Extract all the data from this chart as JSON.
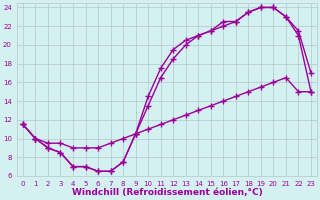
{
  "line1_x": [
    0,
    1,
    2,
    3,
    4,
    5,
    6,
    7,
    8,
    9,
    10,
    11,
    12,
    13,
    14,
    15,
    16,
    17,
    18,
    19,
    20,
    21,
    22,
    23
  ],
  "line1_y": [
    11.5,
    10.0,
    9.0,
    8.5,
    7.0,
    7.0,
    6.5,
    6.5,
    7.5,
    10.5,
    14.5,
    17.5,
    19.5,
    20.5,
    21.0,
    21.5,
    22.5,
    22.5,
    23.5,
    24.0,
    24.0,
    23.0,
    21.0,
    15.0
  ],
  "line2_x": [
    0,
    1,
    2,
    3,
    4,
    5,
    6,
    7,
    8,
    9,
    10,
    11,
    12,
    13,
    14,
    15,
    16,
    17,
    18,
    19,
    20,
    21,
    22,
    23
  ],
  "line2_y": [
    11.5,
    10.0,
    9.0,
    8.5,
    7.0,
    7.0,
    6.5,
    6.5,
    7.5,
    10.5,
    13.5,
    16.5,
    18.5,
    20.0,
    21.0,
    21.5,
    22.0,
    22.5,
    23.5,
    24.0,
    24.0,
    23.0,
    21.5,
    17.0
  ],
  "line3_x": [
    0,
    1,
    2,
    3,
    4,
    5,
    6,
    7,
    8,
    9,
    10,
    11,
    12,
    13,
    14,
    15,
    16,
    17,
    18,
    19,
    20,
    21,
    22,
    23
  ],
  "line3_y": [
    11.5,
    10.0,
    9.5,
    9.5,
    9.0,
    9.0,
    9.0,
    9.5,
    10.0,
    10.5,
    11.0,
    11.5,
    12.0,
    12.5,
    13.0,
    13.5,
    14.0,
    14.5,
    15.0,
    15.5,
    16.0,
    16.5,
    15.0,
    15.0
  ],
  "color": "#9b009b",
  "bg_color": "#d4f0f0",
  "grid_color": "#b0c8c8",
  "xlabel": "Windchill (Refroidissement éolien,°C)",
  "xlim": [
    -0.5,
    23.5
  ],
  "ylim": [
    6,
    24.5
  ],
  "xticks": [
    0,
    1,
    2,
    3,
    4,
    5,
    6,
    7,
    8,
    9,
    10,
    11,
    12,
    13,
    14,
    15,
    16,
    17,
    18,
    19,
    20,
    21,
    22,
    23
  ],
  "yticks": [
    6,
    8,
    10,
    12,
    14,
    16,
    18,
    20,
    22,
    24
  ],
  "marker": "+",
  "markersize": 4,
  "linewidth": 1.0,
  "xlabel_fontsize": 6.5,
  "tick_fontsize": 5.0
}
